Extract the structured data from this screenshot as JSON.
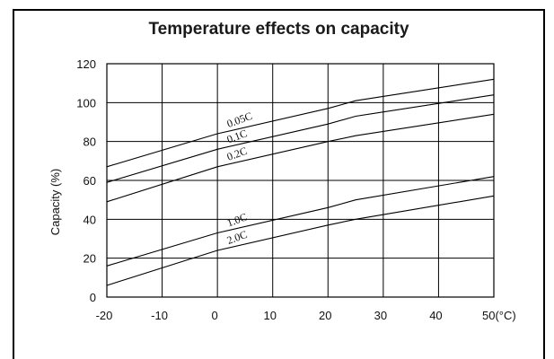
{
  "chart_data": {
    "type": "line",
    "title": "Temperature effects on capacity",
    "xlabel": "",
    "ylabel": "Capacity (%)",
    "xlim": [
      -20,
      50
    ],
    "ylim": [
      0,
      120
    ],
    "x_ticks": [
      "-20",
      "-10",
      "0",
      "10",
      "20",
      "30",
      "40",
      "50(°C)"
    ],
    "x_tick_values": [
      -20,
      -10,
      0,
      10,
      20,
      30,
      40,
      50
    ],
    "y_ticks": [
      "0",
      "20",
      "40",
      "60",
      "80",
      "100",
      "120"
    ],
    "y_tick_values": [
      0,
      20,
      40,
      60,
      80,
      100,
      120
    ],
    "x_grid": [
      -20,
      -10,
      0,
      10,
      20,
      30,
      40,
      50
    ],
    "grid": true,
    "series": [
      {
        "name": "0.05C",
        "x": [
          -20,
          0,
          20,
          25,
          50
        ],
        "y": [
          67,
          84,
          97,
          101,
          112
        ]
      },
      {
        "name": "0.1C",
        "x": [
          -20,
          0,
          20,
          25,
          50
        ],
        "y": [
          59,
          76,
          89,
          93,
          104
        ]
      },
      {
        "name": "0.2C",
        "x": [
          -20,
          0,
          20,
          25,
          50
        ],
        "y": [
          49,
          67,
          80,
          83,
          94
        ]
      },
      {
        "name": "1.0C",
        "x": [
          -20,
          0,
          20,
          25,
          50
        ],
        "y": [
          16,
          33,
          46,
          50,
          62
        ]
      },
      {
        "name": "2.0C",
        "x": [
          -20,
          0,
          20,
          25,
          50
        ],
        "y": [
          6,
          24,
          37,
          40,
          52
        ]
      }
    ]
  }
}
